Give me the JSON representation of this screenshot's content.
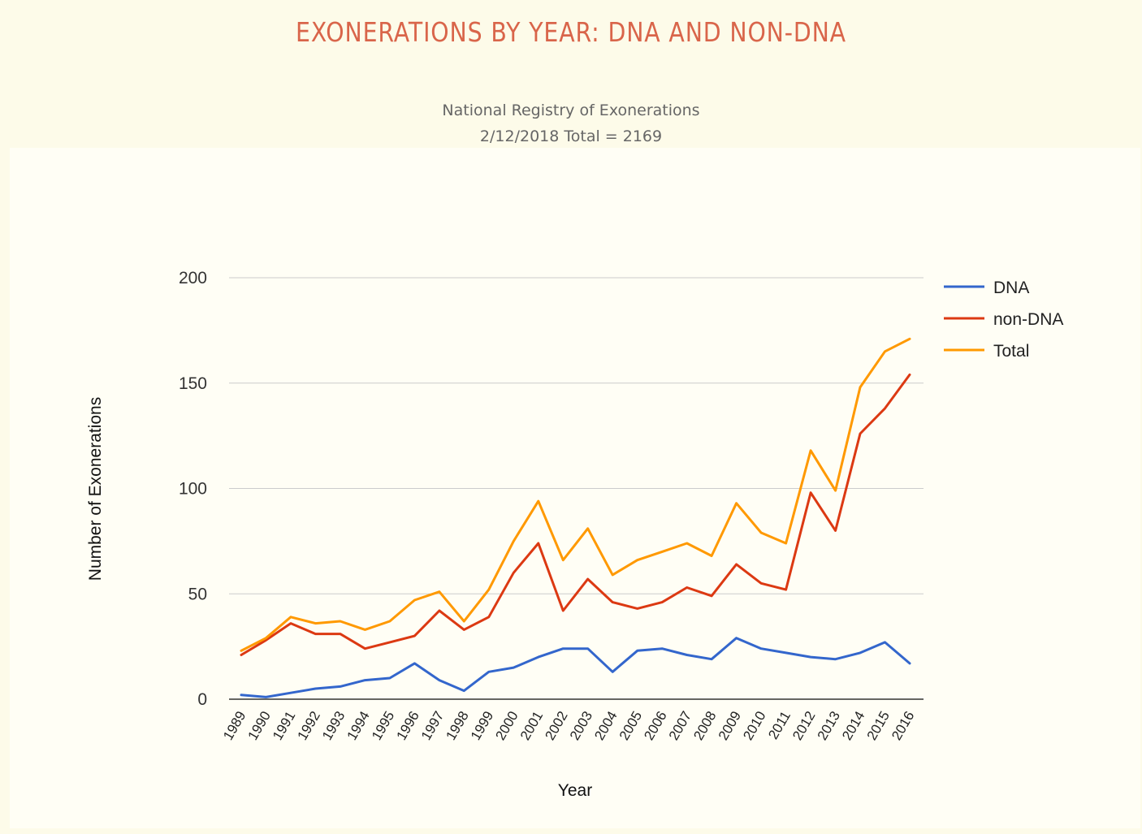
{
  "page": {
    "title": "EXONERATIONS BY YEAR: DNA AND NON-DNA",
    "subtitle_line1": "National Registry of Exonerations",
    "subtitle_line2": "2/12/2018 Total = 2169"
  },
  "chart_data": {
    "type": "line",
    "x": [
      1989,
      1990,
      1991,
      1992,
      1993,
      1994,
      1995,
      1996,
      1997,
      1998,
      1999,
      2000,
      2001,
      2002,
      2003,
      2004,
      2005,
      2006,
      2007,
      2008,
      2009,
      2010,
      2011,
      2012,
      2013,
      2014,
      2015,
      2016
    ],
    "series": [
      {
        "name": "DNA",
        "color": "#3366cc",
        "values": [
          2,
          1,
          3,
          5,
          6,
          9,
          10,
          17,
          9,
          4,
          13,
          15,
          20,
          24,
          24,
          13,
          23,
          24,
          21,
          19,
          29,
          24,
          22,
          20,
          19,
          22,
          27,
          17
        ]
      },
      {
        "name": "non-DNA",
        "color": "#dc3912",
        "values": [
          21,
          28,
          36,
          31,
          31,
          24,
          27,
          30,
          42,
          33,
          39,
          60,
          74,
          42,
          57,
          46,
          43,
          46,
          53,
          49,
          64,
          55,
          52,
          98,
          80,
          126,
          138,
          154
        ]
      },
      {
        "name": "Total",
        "color": "#ff9900",
        "values": [
          23,
          29,
          39,
          36,
          37,
          33,
          37,
          47,
          51,
          37,
          52,
          75,
          94,
          66,
          81,
          59,
          66,
          70,
          74,
          68,
          93,
          79,
          74,
          118,
          99,
          148,
          165,
          171
        ]
      }
    ],
    "xlabel": "Year",
    "ylabel": "Number of Exonerations",
    "ylim": [
      0,
      200
    ],
    "yticks": [
      0,
      50,
      100,
      150,
      200
    ],
    "grid": true,
    "legend": "right"
  }
}
